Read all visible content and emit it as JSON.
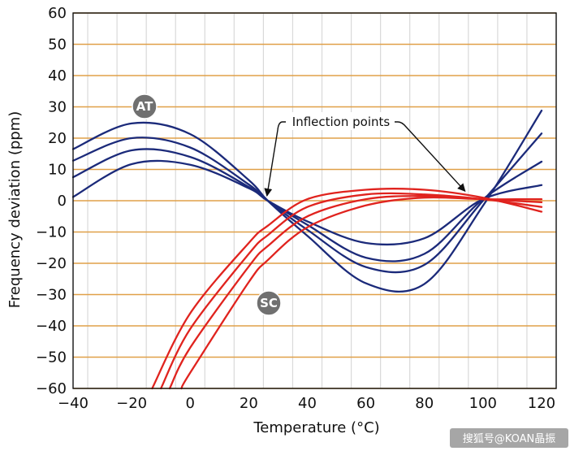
{
  "chart_data": {
    "type": "line",
    "title": "",
    "xlabel": "Temperature (°C)",
    "ylabel": "Frequency deviation (ppm)",
    "xlim": [
      -40,
      125
    ],
    "ylim": [
      -60,
      60
    ],
    "x_ticks": [
      -40,
      -20,
      0,
      20,
      40,
      60,
      80,
      100,
      120
    ],
    "x_tick_labels": [
      "−40",
      "−20",
      "0",
      "20",
      "40",
      "60",
      "80",
      "100",
      "120"
    ],
    "y_ticks": [
      60,
      50,
      40,
      30,
      20,
      10,
      0,
      -10,
      -20,
      -30,
      -40,
      -50,
      -60
    ],
    "y_tick_labels": [
      "60",
      "50",
      "40",
      "30",
      "20",
      "10",
      "0",
      "−10",
      "−20",
      "−30",
      "−40",
      "−50",
      "−60"
    ],
    "grid": "on",
    "colors": {
      "at_series": "#1b2a7a",
      "sc_series": "#e0231e",
      "y_grid": "#e0a048",
      "x_grid_minor": "#d9d9d9",
      "x_grid_major": "#a9a9a9",
      "badge": "#707070"
    },
    "groups": [
      {
        "label": "AT",
        "color_key": "at_series",
        "x": [
          -40,
          -20,
          0,
          20,
          26.5,
          40,
          60,
          80,
          100,
          120
        ],
        "series": [
          {
            "values": [
              16.5,
              24.7,
              21.3,
              6.6,
              0,
              -11.2,
              -26.4,
              -26.6,
              -1.6,
              28.8
            ]
          },
          {
            "values": [
              12.8,
              20.0,
              17.0,
              5.2,
              0,
              -9.3,
              -21.2,
              -20.5,
              0,
              21.5
            ]
          },
          {
            "values": [
              7.5,
              16.1,
              14.0,
              4.4,
              0,
              -7.7,
              -18.2,
              -17.0,
              0.5,
              12.5
            ]
          },
          {
            "values": [
              1.2,
              11.7,
              11.5,
              4.0,
              0,
              -6.6,
              -13.5,
              -12.0,
              0.5,
              5.0
            ]
          }
        ]
      },
      {
        "label": "SC",
        "color_key": "sc_series",
        "x": [
          -40,
          -20,
          0,
          20,
          26.5,
          40,
          60,
          80,
          100,
          120
        ],
        "series": [
          {
            "x_start": -13,
            "values": [
              null,
              null,
              -36.0,
              -13.5,
              -8.0,
              0.5,
              3.5,
              3.5,
              1.0,
              -3.5
            ]
          },
          {
            "x_start": -10,
            "values": [
              null,
              null,
              -41.0,
              -17.0,
              -11.0,
              -2.0,
              2.0,
              2.0,
              0.5,
              -2.0
            ]
          },
          {
            "x_start": -7,
            "values": [
              null,
              null,
              -47.0,
              -21.0,
              -14.5,
              -5.0,
              0.5,
              1.5,
              0.5,
              -0.5
            ]
          },
          {
            "x_start": -3,
            "values": [
              null,
              null,
              -55.0,
              -26.0,
              -19.0,
              -8.5,
              -1.5,
              1.0,
              0.5,
              0.5
            ]
          }
        ]
      }
    ],
    "annotations": {
      "inflection_text": "Inflection points",
      "inflection_targets": [
        {
          "x": 26.5,
          "y": 0
        },
        {
          "x": 95,
          "y": 2
        }
      ],
      "badge_at": "AT",
      "badge_sc": "SC"
    }
  },
  "watermark": "搜狐号@KOAN晶振"
}
